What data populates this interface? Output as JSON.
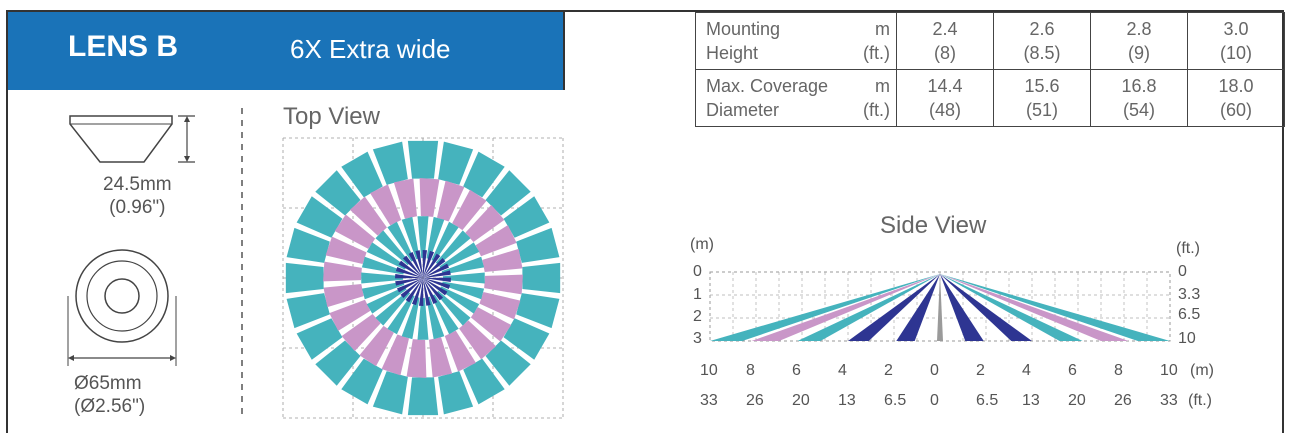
{
  "banner": {
    "lens": "LENS B",
    "description": "6X Extra wide"
  },
  "spec_table": {
    "rows": [
      {
        "label_line1": "Mounting",
        "label_line2": "Height",
        "unit_m": "m",
        "unit_ft": "(ft.)",
        "values": [
          {
            "m": "2.4",
            "ft": "(8)"
          },
          {
            "m": "2.6",
            "ft": "(8.5)"
          },
          {
            "m": "2.8",
            "ft": "(9)"
          },
          {
            "m": "3.0",
            "ft": "(10)"
          }
        ]
      },
      {
        "label_line1": "Max. Coverage",
        "label_line2": "Diameter",
        "unit_m": "m",
        "unit_ft": "(ft.)",
        "values": [
          {
            "m": "14.4",
            "ft": "(48)"
          },
          {
            "m": "15.6",
            "ft": "(51)"
          },
          {
            "m": "16.8",
            "ft": "(54)"
          },
          {
            "m": "18.0",
            "ft": "(60)"
          }
        ]
      }
    ]
  },
  "lens_dims": {
    "height_mm": "24.5mm",
    "height_in": "(0.96\")",
    "diameter_mm": "Ø65mm",
    "diameter_in": "(Ø2.56\")"
  },
  "top_view": {
    "title": "Top View"
  },
  "side_view": {
    "title": "Side View",
    "left_unit": "(m)",
    "right_unit": "(ft.)",
    "left_ticks": [
      "0",
      "1",
      "2",
      "3"
    ],
    "right_ticks": [
      "0",
      "3.3",
      "6.5",
      "10"
    ],
    "bottom_m": [
      "10",
      "8",
      "6",
      "4",
      "2",
      "0",
      "2",
      "4",
      "6",
      "8",
      "10"
    ],
    "bottom_m_unit": "(m)",
    "bottom_ft": [
      "33",
      "26",
      "20",
      "13",
      "6.5",
      "0",
      "6.5",
      "13",
      "20",
      "26",
      "33"
    ],
    "bottom_ft_unit": "(ft.)"
  },
  "colors": {
    "banner": "#1a73b8",
    "teal": "#45b3bd",
    "pink": "#c996c8",
    "navy": "#2e3592",
    "grey": "#9a9a9a"
  }
}
